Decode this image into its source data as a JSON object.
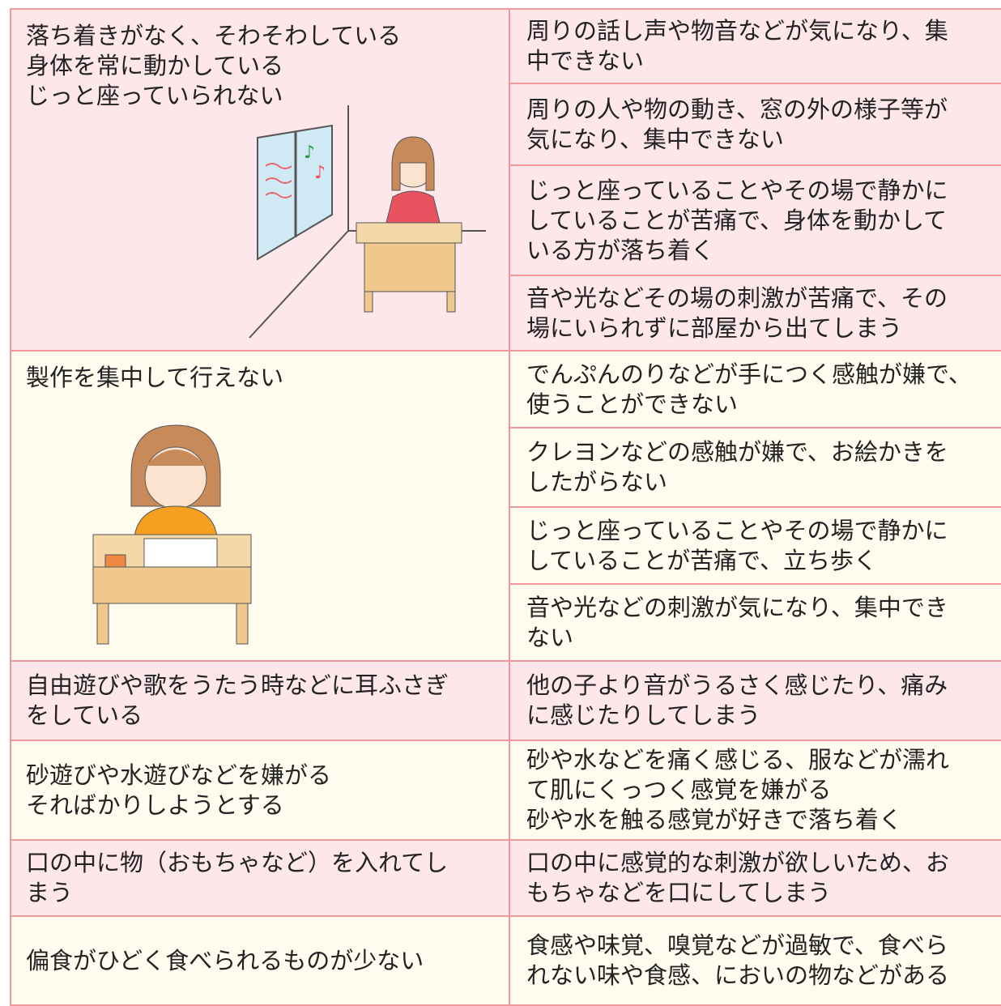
{
  "rows": [
    {
      "left": [
        "落ち着きがなく、そわそわしている",
        "身体を常に動かしている",
        "じっと座っていられない"
      ],
      "right": [
        [
          "周りの話し声や物音などが気になり、集",
          "中できない"
        ],
        [
          "周りの人や物の動き、窓の外の様子等が",
          "気になり、集中できない"
        ],
        [
          "じっと座っていることやその場で静かに",
          "していることが苦痛で、身体を動かして",
          "いる方が落ち着く"
        ],
        [
          "音や光などその場の刺激が苦痛で、その",
          "場にいられずに部屋から出てしまう"
        ]
      ]
    },
    {
      "left": [
        "製作を集中して行えない"
      ],
      "right": [
        [
          "でんぷんのりなどが手につく感触が嫌で、",
          "使うことができない"
        ],
        [
          "クレヨンなどの感触が嫌で、お絵かきを",
          "したがらない"
        ],
        [
          "じっと座っていることやその場で静かに",
          "していることが苦痛で、立ち歩く"
        ],
        [
          "音や光などの刺激が気になり、集中でき",
          "ない"
        ]
      ]
    },
    {
      "left": [
        "自由遊びや歌をうたう時などに耳ふさぎ",
        "をしている"
      ],
      "right": [
        [
          "他の子より音がうるさく感じたり、痛み",
          "に感じたりしてしまう"
        ]
      ]
    },
    {
      "left": [
        "砂遊びや水遊びなどを嫌がる",
        "そればかりしようとする"
      ],
      "right": [
        [
          "砂や水などを痛く感じる、服などが濡れ",
          "て肌にくっつく感覚を嫌がる",
          "砂や水を触る感覚が好きで落ち着く"
        ]
      ]
    },
    {
      "left": [
        "口の中に物（おもちゃなど）を入れてし",
        "まう"
      ],
      "right": [
        [
          "口の中に感覚的な刺激が欲しいため、お",
          "もちゃなどを口にしてしまう"
        ]
      ]
    },
    {
      "left": [
        "偏食がひどく食べられるものが少ない"
      ],
      "right": [
        [
          "食感や味覚、嗅覚などが過敏で、食べら",
          "れない味や食感、においの物などがある"
        ]
      ]
    }
  ]
}
